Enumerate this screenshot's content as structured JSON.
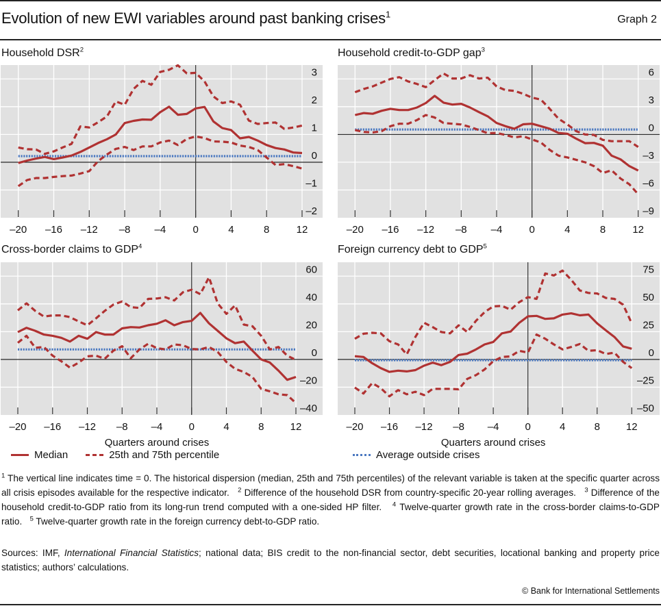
{
  "header": {
    "title": "Evolution of new EWI variables around past banking crises",
    "title_note": "1",
    "graph_label": "Graph 2"
  },
  "colors": {
    "median": "#b03232",
    "percentile": "#b03232",
    "average_outside": "#4a78c0",
    "plot_background": "#e1e1e1",
    "gridline": "#ffffff"
  },
  "legend": {
    "median": "Median",
    "percentile": "25th and 75th percentile",
    "average_outside": "Average outside crises"
  },
  "chart_data": [
    {
      "type": "line",
      "title": "Household DSR",
      "title_note": "2",
      "xlabel": "",
      "ylabel": "",
      "xlim": [
        -20,
        12
      ],
      "ylim": [
        -2,
        3.5
      ],
      "xticks": [
        -20,
        -16,
        -12,
        -8,
        -4,
        0,
        4,
        8,
        12
      ],
      "xtick_labels": [
        "–20",
        "–16",
        "–12",
        "–8",
        "–4",
        "0",
        "4",
        "8",
        "12"
      ],
      "yticks": [
        -2,
        -1,
        0,
        1,
        2,
        3
      ],
      "ytick_labels": [
        "–2",
        "–1",
        "0",
        "1",
        "2",
        "3"
      ],
      "grid": true,
      "x": [
        -20,
        -19,
        -18,
        -17,
        -16,
        -15,
        -14,
        -13,
        -12,
        -11,
        -10,
        -9,
        -8,
        -7,
        -6,
        -5,
        -4,
        -3,
        -2,
        -1,
        0,
        1,
        2,
        3,
        4,
        5,
        6,
        7,
        8,
        9,
        10,
        11,
        12
      ],
      "series": [
        {
          "name": "Median",
          "style": "solid",
          "values": [
            -0.03,
            0.06,
            0.13,
            0.19,
            0.11,
            0.17,
            0.24,
            0.37,
            0.53,
            0.69,
            0.83,
            1.0,
            1.41,
            1.49,
            1.54,
            1.53,
            1.8,
            2.0,
            1.71,
            1.74,
            1.94,
            1.99,
            1.47,
            1.23,
            1.16,
            0.86,
            0.91,
            0.78,
            0.62,
            0.51,
            0.46,
            0.35,
            0.33
          ]
        },
        {
          "name": "75th percentile",
          "style": "dashed",
          "values": [
            0.53,
            0.47,
            0.46,
            0.3,
            0.39,
            0.53,
            0.66,
            1.29,
            1.25,
            1.44,
            1.65,
            2.19,
            2.07,
            2.64,
            2.93,
            2.79,
            3.25,
            3.33,
            3.49,
            3.2,
            3.22,
            2.91,
            2.37,
            2.13,
            2.19,
            2.07,
            1.5,
            1.38,
            1.41,
            1.43,
            1.2,
            1.25,
            1.32
          ]
        },
        {
          "name": "25th percentile",
          "style": "dashed",
          "values": [
            -0.86,
            -0.64,
            -0.57,
            -0.57,
            -0.53,
            -0.5,
            -0.48,
            -0.41,
            -0.32,
            0.04,
            0.28,
            0.48,
            0.55,
            0.44,
            0.57,
            0.57,
            0.71,
            0.78,
            0.62,
            0.84,
            0.93,
            0.87,
            0.75,
            0.74,
            0.71,
            0.6,
            0.55,
            0.44,
            0.17,
            -0.1,
            -0.07,
            -0.14,
            -0.23
          ]
        },
        {
          "name": "Average outside crises",
          "style": "dotted",
          "values": [
            0.22,
            0.22,
            0.22,
            0.22,
            0.22,
            0.22,
            0.22,
            0.22,
            0.22,
            0.22,
            0.22,
            0.22,
            0.22,
            0.22,
            0.22,
            0.22,
            0.22,
            0.22,
            0.22,
            0.22,
            0.22,
            0.22,
            0.22,
            0.22,
            0.22,
            0.22,
            0.22,
            0.22,
            0.22,
            0.22,
            0.22,
            0.22,
            0.22
          ]
        }
      ]
    },
    {
      "type": "line",
      "title": "Household credit-to-GDP gap",
      "title_note": "3",
      "xlabel": "",
      "ylabel": "",
      "xlim": [
        -20,
        12
      ],
      "ylim": [
        -9,
        7.5
      ],
      "xticks": [
        -20,
        -16,
        -12,
        -8,
        -4,
        0,
        4,
        8,
        12
      ],
      "xtick_labels": [
        "–20",
        "–16",
        "–12",
        "–8",
        "–4",
        "0",
        "4",
        "8",
        "12"
      ],
      "yticks": [
        -9,
        -6,
        -3,
        0,
        3,
        6
      ],
      "ytick_labels": [
        "–9",
        "–6",
        "–3",
        "0",
        "3",
        "6"
      ],
      "grid": true,
      "x": [
        -20,
        -19,
        -18,
        -17,
        -16,
        -15,
        -14,
        -13,
        -12,
        -11,
        -10,
        -9,
        -8,
        -7,
        -6,
        -5,
        -4,
        -3,
        -2,
        -1,
        0,
        1,
        2,
        3,
        4,
        5,
        6,
        7,
        8,
        9,
        10,
        11,
        12
      ],
      "series": [
        {
          "name": "Median",
          "style": "solid",
          "values": [
            2.1,
            2.31,
            2.23,
            2.56,
            2.77,
            2.64,
            2.64,
            2.91,
            3.39,
            4.17,
            3.44,
            3.23,
            3.31,
            2.91,
            2.42,
            1.96,
            1.24,
            0.89,
            0.62,
            1.1,
            1.16,
            0.89,
            0.62,
            0.16,
            0.08,
            -0.46,
            -0.94,
            -0.91,
            -1.21,
            -2.29,
            -2.69,
            -3.42,
            -3.9
          ]
        },
        {
          "name": "75th percentile",
          "style": "dashed",
          "values": [
            4.57,
            4.92,
            5.19,
            5.6,
            6.0,
            6.19,
            5.73,
            5.46,
            5.11,
            5.87,
            6.59,
            6.05,
            6.05,
            6.4,
            6.05,
            6.13,
            5.19,
            4.79,
            4.71,
            4.39,
            3.98,
            3.77,
            2.77,
            1.7,
            1.08,
            0.35,
            0.0,
            -0.05,
            -0.59,
            -0.73,
            -0.73,
            -0.73,
            -1.35
          ]
        },
        {
          "name": "25th percentile",
          "style": "dashed",
          "values": [
            0.48,
            0.27,
            0.22,
            0.35,
            0.89,
            1.16,
            1.16,
            1.56,
            2.1,
            1.83,
            1.24,
            1.16,
            1.08,
            0.81,
            0.48,
            0.13,
            0.16,
            -0.05,
            -0.32,
            -0.19,
            -0.54,
            -0.86,
            -1.67,
            -2.29,
            -2.48,
            -2.74,
            -3.01,
            -3.42,
            -4.17,
            -3.87,
            -4.76,
            -5.38,
            -6.46
          ]
        },
        {
          "name": "Average outside crises",
          "style": "dotted",
          "values": [
            0.54,
            0.54,
            0.54,
            0.54,
            0.54,
            0.54,
            0.54,
            0.54,
            0.54,
            0.54,
            0.54,
            0.54,
            0.54,
            0.54,
            0.54,
            0.54,
            0.54,
            0.54,
            0.54,
            0.54,
            0.54,
            0.54,
            0.54,
            0.54,
            0.54,
            0.54,
            0.54,
            0.54,
            0.54,
            0.54,
            0.54,
            0.54,
            0.54
          ]
        }
      ]
    },
    {
      "type": "line",
      "title": "Cross-border claims to GDP",
      "title_note": "4",
      "xlabel": "Quarters around crises",
      "ylabel": "",
      "xlim": [
        -20,
        12
      ],
      "ylim": [
        -40,
        70
      ],
      "xticks": [
        -20,
        -16,
        -12,
        -8,
        -4,
        0,
        4,
        8,
        12
      ],
      "xtick_labels": [
        "–20",
        "–16",
        "–12",
        "–8",
        "–4",
        "0",
        "4",
        "8",
        "12"
      ],
      "yticks": [
        -40,
        -20,
        0,
        20,
        40,
        60
      ],
      "ytick_labels": [
        "–40",
        "–20",
        "0",
        "20",
        "40",
        "60"
      ],
      "grid": true,
      "x": [
        -20,
        -19,
        -18,
        -17,
        -16,
        -15,
        -14,
        -13,
        -12,
        -11,
        -10,
        -9,
        -8,
        -7,
        -6,
        -5,
        -4,
        -3,
        -2,
        -1,
        0,
        1,
        2,
        3,
        4,
        5,
        6,
        7,
        8,
        9,
        10,
        11,
        12
      ],
      "series": [
        {
          "name": "Median",
          "style": "solid",
          "values": [
            19.7,
            22.8,
            20.6,
            17.9,
            17.0,
            15.6,
            12.9,
            17.0,
            14.9,
            19.7,
            17.9,
            17.9,
            22.4,
            23.3,
            23.0,
            24.6,
            25.7,
            28.2,
            24.6,
            26.9,
            27.8,
            33.5,
            26.0,
            20.6,
            15.2,
            11.7,
            12.9,
            6.3,
            0.0,
            -2.2,
            -8.1,
            -14.7,
            -12.6
          ]
        },
        {
          "name": "75th percentile",
          "style": "dashed",
          "values": [
            35.3,
            40.4,
            35.0,
            30.9,
            31.7,
            31.7,
            30.5,
            27.4,
            24.6,
            29.6,
            35.0,
            39.5,
            41.8,
            37.7,
            37.1,
            43.6,
            43.9,
            44.8,
            42.5,
            48.4,
            50.2,
            47.0,
            59.2,
            40.4,
            32.8,
            38.9,
            25.1,
            23.9,
            17.0,
            7.2,
            9.0,
            2.7,
            -0.4
          ]
        },
        {
          "name": "25th percentile",
          "style": "dashed",
          "values": [
            12.0,
            17.0,
            8.4,
            9.0,
            2.7,
            -1.3,
            -5.9,
            -2.3,
            2.2,
            2.7,
            0.5,
            6.3,
            9.5,
            0.9,
            7.2,
            11.3,
            8.1,
            7.2,
            10.8,
            10.2,
            7.5,
            7.2,
            9.0,
            5.4,
            -1.8,
            -6.8,
            -9.0,
            -12.6,
            -21.2,
            -23.0,
            -25.1,
            -25.7,
            -31.4
          ]
        },
        {
          "name": "Average outside crises",
          "style": "dotted",
          "values": [
            7.2,
            7.2,
            7.2,
            7.2,
            7.2,
            7.2,
            7.2,
            7.2,
            7.2,
            7.2,
            7.2,
            7.2,
            7.2,
            7.2,
            7.2,
            7.2,
            7.2,
            7.2,
            7.2,
            7.2,
            7.2,
            7.2,
            7.2,
            7.2,
            7.2,
            7.2,
            7.2,
            7.2,
            7.2,
            7.2,
            7.2,
            7.2,
            7.2
          ]
        }
      ]
    },
    {
      "type": "line",
      "title": "Foreign currency debt to GDP",
      "title_note": "5",
      "xlabel": "Quarters around crises",
      "ylabel": "",
      "xlim": [
        -20,
        12
      ],
      "ylim": [
        -50,
        87.5
      ],
      "xticks": [
        -20,
        -16,
        -12,
        -8,
        -4,
        0,
        4,
        8,
        12
      ],
      "xtick_labels": [
        "–20",
        "–16",
        "–12",
        "–8",
        "–4",
        "0",
        "4",
        "8",
        "12"
      ],
      "yticks": [
        -50,
        -25,
        0,
        25,
        50,
        75
      ],
      "ytick_labels": [
        "–50",
        "–25",
        "0",
        "25",
        "50",
        "75"
      ],
      "grid": true,
      "x": [
        -20,
        -19,
        -18,
        -17,
        -16,
        -15,
        -14,
        -13,
        -12,
        -11,
        -10,
        -9,
        -8,
        -7,
        -6,
        -5,
        -4,
        -3,
        -2,
        -1,
        0,
        1,
        2,
        3,
        4,
        5,
        6,
        7,
        8,
        9,
        10,
        11,
        12
      ],
      "series": [
        {
          "name": "Median",
          "style": "solid",
          "values": [
            2.9,
            2.2,
            -3.4,
            -7.8,
            -11.2,
            -10.1,
            -10.8,
            -9.6,
            -5.6,
            -2.9,
            -5.2,
            -2.2,
            4.0,
            5.2,
            9.0,
            13.5,
            15.7,
            23.5,
            25.1,
            33.0,
            38.8,
            39.2,
            36.5,
            37.0,
            40.4,
            41.5,
            39.7,
            40.4,
            32.5,
            26.2,
            20.2,
            11.7,
            9.6
          ]
        },
        {
          "name": "75th percentile",
          "style": "dashed",
          "values": [
            18.6,
            23.1,
            24.0,
            23.5,
            16.4,
            13.5,
            4.5,
            20.2,
            33.0,
            29.1,
            24.7,
            23.5,
            30.7,
            24.7,
            34.8,
            42.6,
            47.8,
            48.2,
            44.8,
            51.6,
            56.1,
            54.5,
            77.4,
            75.6,
            80.0,
            71.7,
            62.1,
            59.9,
            59.4,
            55.4,
            54.5,
            49.3,
            32.5
          ]
        },
        {
          "name": "25th percentile",
          "style": "dashed",
          "values": [
            -25.3,
            -30.7,
            -21.3,
            -25.8,
            -33.2,
            -27.6,
            -31.4,
            -29.1,
            -32.1,
            -26.5,
            -26.5,
            -26.5,
            -26.9,
            -17.5,
            -14.1,
            -9.0,
            -1.6,
            2.2,
            2.7,
            7.8,
            6.1,
            22.4,
            18.6,
            13.5,
            9.0,
            11.2,
            13.9,
            7.8,
            8.3,
            4.9,
            6.1,
            -2.2,
            -7.8
          ]
        },
        {
          "name": "Average outside crises",
          "style": "dotted",
          "values": [
            -0.7,
            -0.7,
            -0.7,
            -0.7,
            -0.7,
            -0.7,
            -0.7,
            -0.7,
            -0.7,
            -0.7,
            -0.7,
            -0.7,
            -0.7,
            -0.7,
            -0.7,
            -0.7,
            -0.7,
            -0.7,
            -0.7,
            -0.7,
            -0.7,
            -0.7,
            -0.7,
            -0.7,
            -0.7,
            -0.7,
            -0.7,
            -0.7,
            -0.7,
            -0.7,
            -0.7,
            -0.7,
            -0.7
          ]
        }
      ]
    }
  ],
  "footnotes": {
    "n1_mark": "1",
    "n1": " The vertical line indicates time = 0. The historical dispersion (median, 25th and 75th percentiles) of the relevant variable is taken at the specific quarter across all crisis episodes available for the respective indicator.",
    "n2_mark": "2",
    "n2": " Difference of the household DSR from country-specific 20-year rolling averages.",
    "n3_mark": "3",
    "n3": " Difference of the household credit-to-GDP ratio from its long-run trend computed with a one-sided HP filter.",
    "n4_mark": "4",
    "n4": " Twelve-quarter growth rate in the cross-border claims-to-GDP ratio.",
    "n5_mark": "5",
    "n5": " Twelve-quarter growth rate in the foreign currency debt-to-GDP ratio."
  },
  "sources": {
    "prefix": "Sources: IMF, ",
    "italic": "International Financial Statistics",
    "suffix": "; national data; BIS credit to the non-financial sector, debt securities, locational banking and property price statistics; authors’ calculations."
  },
  "copyright": "© Bank for International Settlements"
}
